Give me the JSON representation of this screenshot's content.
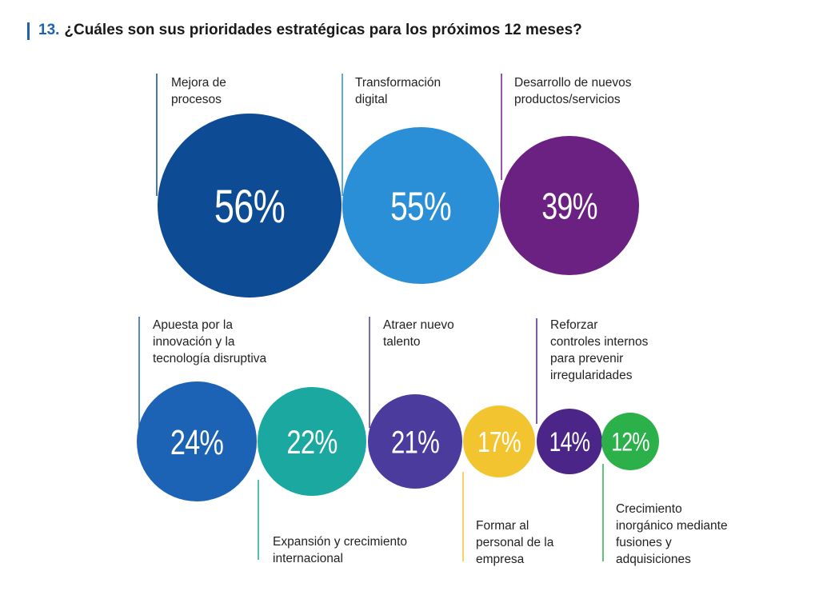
{
  "title": {
    "number": "13.",
    "text": "¿Cuáles son sus prioridades estratégicas para los próximos 12 meses?"
  },
  "colors": {
    "accent": "#1e63b0",
    "text": "#1a1a1a"
  },
  "chart_data": {
    "type": "bubble",
    "title": "¿Cuáles son sus prioridades estratégicas para los próximos 12 meses?",
    "unit": "%",
    "items": [
      {
        "label_lines": [
          "Mejora de",
          "procesos"
        ],
        "value": 56,
        "display": "56%",
        "color": "#0d4b94"
      },
      {
        "label_lines": [
          "Transformación",
          "digital"
        ],
        "value": 55,
        "display": "55%",
        "color": "#2a8fd6"
      },
      {
        "label_lines": [
          "Desarrollo de nuevos",
          "productos/servicios"
        ],
        "value": 39,
        "display": "39%",
        "color": "#6a2182"
      },
      {
        "label_lines": [
          "Apuesta por la",
          "innovación y la",
          "tecnología disruptiva"
        ],
        "value": 24,
        "display": "24%",
        "color": "#1c63b5"
      },
      {
        "label_lines": [
          "Expansión y crecimiento",
          "internacional"
        ],
        "value": 22,
        "display": "22%",
        "color": "#1aa8a0"
      },
      {
        "label_lines": [
          "Atraer nuevo",
          "talento"
        ],
        "value": 21,
        "display": "21%",
        "color": "#4a3b9c"
      },
      {
        "label_lines": [
          "Formar al",
          "personal de la",
          "empresa"
        ],
        "value": 17,
        "display": "17%",
        "color": "#f2c530"
      },
      {
        "label_lines": [
          "Reforzar",
          "controles internos",
          "para prevenir",
          "irregularidades"
        ],
        "value": 14,
        "display": "14%",
        "color": "#4b2688"
      },
      {
        "label_lines": [
          "Crecimiento",
          "inorgánico mediante",
          "fusiones y",
          "adquisiciones"
        ],
        "value": 12,
        "display": "12%",
        "color": "#2bb04a"
      }
    ]
  }
}
